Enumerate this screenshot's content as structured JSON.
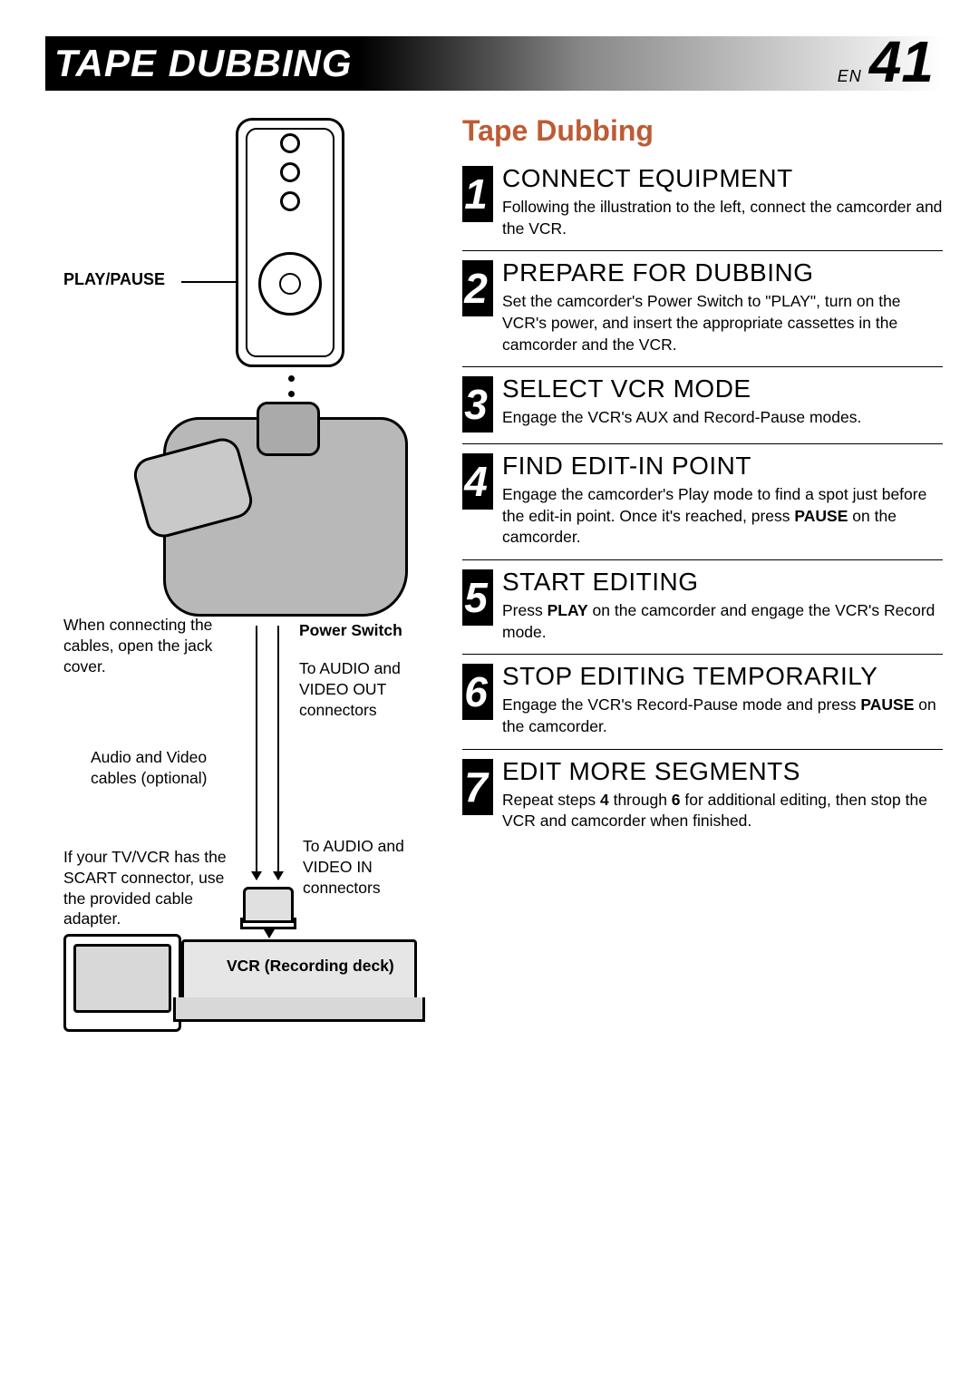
{
  "header": {
    "title": "TAPE DUBBING",
    "lang": "EN",
    "page_number": "41",
    "title_bg_gradient": [
      "#000000",
      "#888888",
      "#ffffff"
    ],
    "title_color": "#ffffff"
  },
  "section_title": "Tape Dubbing",
  "section_title_color": "#bd5b34",
  "diagram_labels": {
    "play_pause": "PLAY/PAUSE",
    "power_switch": "Power Switch",
    "open_jack_cover": "When connecting the cables, open the jack cover.",
    "audio_video_out": "To AUDIO and VIDEO OUT connectors",
    "av_cables_optional": "Audio and Video cables (optional)",
    "scart_note": "If your TV/VCR has the SCART connector, use the provided cable adapter.",
    "audio_video_in": "To AUDIO and VIDEO IN connectors",
    "vcr_label": "VCR (Recording deck)"
  },
  "steps": [
    {
      "num": "1",
      "title": "CONNECT EQUIPMENT",
      "body_html": "Following the illustration to the left, connect the camcorder and the VCR."
    },
    {
      "num": "2",
      "title": "PREPARE FOR DUBBING",
      "body_html": "Set the camcorder's Power Switch to \"PLAY\", turn on the VCR's power, and insert the appropriate cassettes in the camcorder and the VCR."
    },
    {
      "num": "3",
      "title": "SELECT VCR MODE",
      "body_html": "Engage the VCR's AUX and Record-Pause modes."
    },
    {
      "num": "4",
      "title": "FIND EDIT-IN POINT",
      "body_html": "Engage the camcorder's Play mode to find a spot just before the edit-in point. Once it's reached, press <b>PAUSE</b> on the camcorder."
    },
    {
      "num": "5",
      "title": "START EDITING",
      "body_html": "Press <b>PLAY</b> on the camcorder and engage the VCR's Record mode."
    },
    {
      "num": "6",
      "title": "STOP EDITING TEMPORARILY",
      "body_html": "Engage the VCR's Record-Pause mode and press <b>PAUSE</b> on the camcorder."
    },
    {
      "num": "7",
      "title": "EDIT MORE SEGMENTS",
      "body_html": "Repeat steps <b>4</b> through <b>6</b> for additional editing, then stop the VCR and camcorder when finished."
    }
  ]
}
